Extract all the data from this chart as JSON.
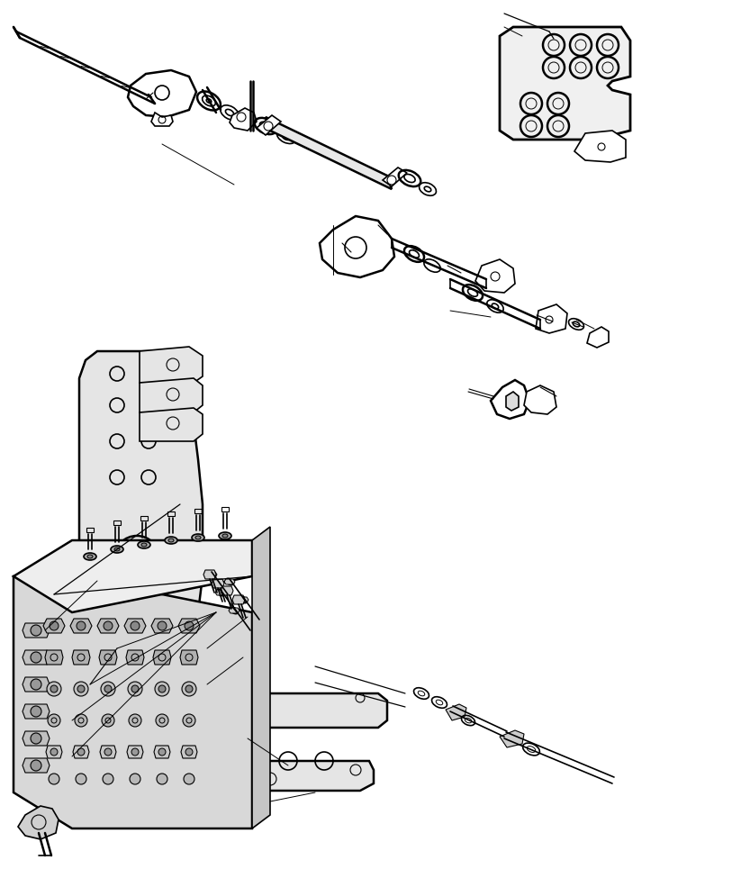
{
  "background_color": "#ffffff",
  "line_color": "#000000",
  "line_width": 1.2,
  "fig_width": 8.13,
  "fig_height": 9.65
}
